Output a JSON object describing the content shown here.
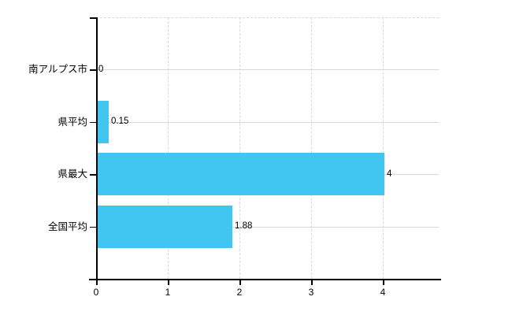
{
  "chart_data": {
    "type": "bar",
    "orientation": "horizontal",
    "title": "",
    "xlabel": "",
    "ylabel": "",
    "categories": [
      "南アルプス市",
      "県平均",
      "県最大",
      "全国平均"
    ],
    "values": [
      0,
      0.15,
      4,
      1.88
    ],
    "value_labels": [
      "0",
      "0.15",
      "4",
      "1.88"
    ],
    "x_ticks": [
      0,
      1,
      2,
      3,
      4
    ],
    "x_tick_labels": [
      "0",
      "1",
      "2",
      "3",
      "4"
    ],
    "xlim": [
      0,
      4.78
    ],
    "grid": "on",
    "legend": "none",
    "bar_color": "#41c6f1",
    "axis_color": "#000000",
    "grid_color": "#d6dbd6",
    "background_color": "#ffffff"
  }
}
